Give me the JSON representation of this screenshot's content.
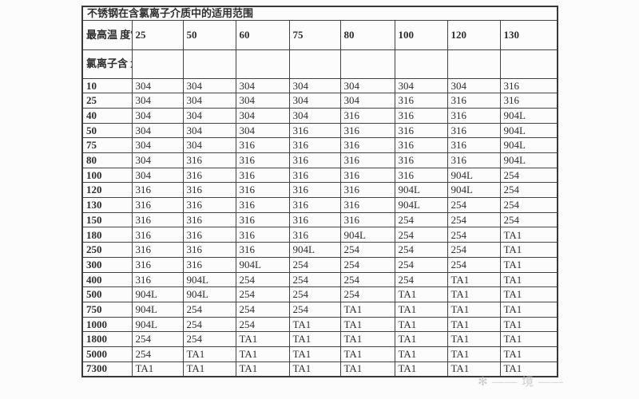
{
  "chart_data": {
    "type": "table",
    "title": "不锈钢在含氯离子介质中的适用范围",
    "col_header": "最高温度℃",
    "col_header_display": "最高温\n度℃",
    "row_header": "氯离子含量(mg/L)",
    "row_header_display": "氯离子含\n量(mg/L)",
    "temp_columns": [
      "25",
      "50",
      "60",
      "75",
      "80",
      "100",
      "120",
      "130"
    ],
    "rows": [
      {
        "label": "10",
        "cells": [
          "304",
          "304",
          "304",
          "304",
          "304",
          "304",
          "304",
          "316"
        ]
      },
      {
        "label": "25",
        "cells": [
          "304",
          "304",
          "304",
          "304",
          "304",
          "316",
          "316",
          "316"
        ]
      },
      {
        "label": "40",
        "cells": [
          "304",
          "304",
          "304",
          "304",
          "316",
          "316",
          "316",
          "904L"
        ]
      },
      {
        "label": "50",
        "cells": [
          "304",
          "304",
          "304",
          "316",
          "316",
          "316",
          "316",
          "904L"
        ]
      },
      {
        "label": "75",
        "cells": [
          "304",
          "304",
          "316",
          "316",
          "316",
          "316",
          "316",
          "904L"
        ]
      },
      {
        "label": "80",
        "cells": [
          "304",
          "316",
          "316",
          "316",
          "316",
          "316",
          "316",
          "904L"
        ]
      },
      {
        "label": "100",
        "cells": [
          "304",
          "316",
          "316",
          "316",
          "316",
          "316",
          "904L",
          "254"
        ]
      },
      {
        "label": "120",
        "cells": [
          "316",
          "316",
          "316",
          "316",
          "316",
          "904L",
          "904L",
          "254"
        ]
      },
      {
        "label": "130",
        "cells": [
          "316",
          "316",
          "316",
          "316",
          "316",
          "904L",
          "254",
          "254"
        ]
      },
      {
        "label": "150",
        "cells": [
          "316",
          "316",
          "316",
          "316",
          "316",
          "254",
          "254",
          "254"
        ]
      },
      {
        "label": "180",
        "cells": [
          "316",
          "316",
          "316",
          "316",
          "904L",
          "254",
          "254",
          "TA1"
        ]
      },
      {
        "label": "250",
        "cells": [
          "316",
          "316",
          "316",
          "904L",
          "254",
          "254",
          "254",
          "TA1"
        ]
      },
      {
        "label": "300",
        "cells": [
          "316",
          "316",
          "904L",
          "254",
          "254",
          "254",
          "254",
          "TA1"
        ]
      },
      {
        "label": "400",
        "cells": [
          "316",
          "904L",
          "254",
          "254",
          "254",
          "254",
          "TA1",
          "TA1"
        ]
      },
      {
        "label": "500",
        "cells": [
          "904L",
          "904L",
          "254",
          "254",
          "254",
          "TA1",
          "TA1",
          "TA1"
        ]
      },
      {
        "label": "750",
        "cells": [
          "904L",
          "254",
          "254",
          "254",
          "TA1",
          "TA1",
          "TA1",
          "TA1"
        ]
      },
      {
        "label": "1000",
        "cells": [
          "904L",
          "254",
          "254",
          "TA1",
          "TA1",
          "TA1",
          "TA1",
          "TA1"
        ]
      },
      {
        "label": "1800",
        "cells": [
          "254",
          "254",
          "TA1",
          "TA1",
          "TA1",
          "TA1",
          "TA1",
          "TA1"
        ]
      },
      {
        "label": "5000",
        "cells": [
          "254",
          "TA1",
          "TA1",
          "TA1",
          "TA1",
          "TA1",
          "TA1",
          "TA1"
        ]
      },
      {
        "label": "7300",
        "cells": [
          "TA1",
          "TA1",
          "TA1",
          "TA1",
          "TA1",
          "TA1",
          "TA1",
          "TA1"
        ]
      }
    ]
  },
  "watermark": {
    "text": "✻ —— 境 ——"
  },
  "colors": {
    "background": "#fcfcfc",
    "border": "#434343",
    "text": "#2e2e2e",
    "watermark": "#bdbdbd"
  }
}
